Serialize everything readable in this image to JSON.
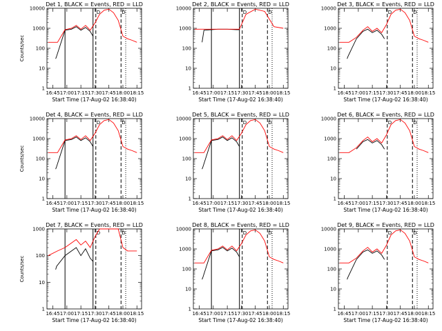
{
  "chart_data": [
    {
      "type": "line",
      "title": "Det 1, BLACK = Events, RED = LLD",
      "xlabel": "Start Time (17-Aug-02 16:38:40)",
      "ylabel": "Counts/sec",
      "yscale": "log",
      "ylim": [
        1,
        10000
      ],
      "xlim": [
        "16:38:40",
        "18:20:00"
      ],
      "x_ticks": [
        "16:45",
        "17:00",
        "17:15",
        "17:30",
        "17:45",
        "18:00",
        "18:15"
      ],
      "y_ticks": [
        "1",
        "10",
        "100",
        "1000",
        "10000"
      ],
      "vertical_lines_solid": [
        "16:58",
        "17:28"
      ],
      "vertical_lines_dashed": [
        "17:31",
        "17:58"
      ],
      "vertical_lines_dotted": [
        "18:03"
      ],
      "markers_text": [
        "D",
        "D"
      ],
      "series": [
        {
          "color": "#000000",
          "x": [
            "16:48",
            "16:49",
            "16:58",
            "17:05",
            "17:10",
            "17:15",
            "17:20",
            "17:25",
            "17:28"
          ],
          "y": [
            30,
            40,
            800,
            900,
            1200,
            800,
            1100,
            700,
            400
          ]
        },
        {
          "color": "#ff0000",
          "x": [
            "16:40",
            "16:50",
            "16:58",
            "17:05",
            "17:10",
            "17:15",
            "17:20",
            "17:25",
            "17:30",
            "17:35",
            "17:40",
            "17:45",
            "17:50",
            "17:55",
            "18:00",
            "18:05",
            "18:10",
            "18:15"
          ],
          "y": [
            200,
            200,
            850,
            1000,
            1400,
            900,
            1400,
            800,
            1800,
            5000,
            8000,
            9000,
            6000,
            2500,
            400,
            300,
            250,
            200
          ]
        }
      ]
    },
    {
      "type": "line",
      "title": "Det 2, BLACK = Events, RED = LLD",
      "xlabel": "Start Time (17-Aug-02 16:38:40)",
      "ylabel": "",
      "yscale": "log",
      "ylim": [
        1,
        10000
      ],
      "x_ticks": [
        "16:45",
        "17:00",
        "17:15",
        "17:30",
        "17:45",
        "18:00",
        "18:15"
      ],
      "y_ticks": [
        "1",
        "10",
        "100",
        "1000",
        "10000"
      ],
      "vertical_lines_solid": [
        "16:58",
        "17:28"
      ],
      "vertical_lines_dashed": [
        "17:31",
        "17:58"
      ],
      "vertical_lines_dotted": [
        "18:03"
      ],
      "markers_text": [
        "D",
        "D"
      ],
      "series": [
        {
          "color": "#000000",
          "x": [
            "16:48",
            "16:50",
            "16:58",
            "17:05",
            "17:15",
            "17:25",
            "17:28"
          ],
          "y": [
            200,
            800,
            850,
            900,
            900,
            850,
            850
          ]
        },
        {
          "color": "#ff0000",
          "x": [
            "16:40",
            "16:50",
            "17:00",
            "17:15",
            "17:28",
            "17:35",
            "17:45",
            "17:55",
            "18:05",
            "18:15"
          ],
          "y": [
            900,
            900,
            900,
            900,
            900,
            5000,
            9000,
            7000,
            1200,
            1000
          ]
        }
      ]
    },
    {
      "type": "line",
      "title": "Det 3, BLACK = Events, RED = LLD",
      "xlabel": "Start Time (17-Aug-02 16:38:40)",
      "ylabel": "",
      "yscale": "log",
      "ylim": [
        1,
        10000
      ],
      "x_ticks": [
        "16:45",
        "17:00",
        "17:15",
        "17:30",
        "17:45",
        "18:00",
        "18:15"
      ],
      "y_ticks": [
        "1",
        "10",
        "100",
        "1000",
        "10000"
      ],
      "vertical_lines_dashed": [
        "17:31",
        "17:58"
      ],
      "vertical_lines_dotted": [
        "18:03"
      ],
      "markers_text": [
        "D",
        "D"
      ],
      "series": [
        {
          "color": "#000000",
          "x": [
            "16:48",
            "16:49",
            "16:58",
            "17:05",
            "17:10",
            "17:15",
            "17:20",
            "17:25",
            "17:28"
          ],
          "y": [
            30,
            40,
            300,
            700,
            900,
            600,
            800,
            500,
            300
          ]
        },
        {
          "color": "#ff0000",
          "x": [
            "16:40",
            "16:50",
            "16:58",
            "17:05",
            "17:10",
            "17:15",
            "17:20",
            "17:25",
            "17:30",
            "17:35",
            "17:40",
            "17:45",
            "17:50",
            "17:55",
            "18:00",
            "18:05",
            "18:10",
            "18:15"
          ],
          "y": [
            200,
            200,
            350,
            800,
            1200,
            700,
            1000,
            600,
            1500,
            5000,
            8000,
            9000,
            6000,
            2500,
            400,
            300,
            250,
            200
          ]
        }
      ]
    },
    {
      "type": "line",
      "title": "Det 4, BLACK = Events, RED = LLD",
      "xlabel": "Start Time (17-Aug-02 16:38:40)",
      "ylabel": "Counts/sec",
      "yscale": "log",
      "ylim": [
        1,
        10000
      ],
      "x_ticks": [
        "16:45",
        "17:00",
        "17:15",
        "17:30",
        "17:45",
        "18:00",
        "18:15"
      ],
      "y_ticks": [
        "1",
        "10",
        "100",
        "1000",
        "10000"
      ],
      "vertical_lines_solid": [
        "16:58",
        "17:28"
      ],
      "vertical_lines_dashed": [
        "17:31",
        "17:58"
      ],
      "vertical_lines_dotted": [
        "18:03"
      ],
      "markers_text": [
        "D",
        "D"
      ],
      "series": [
        {
          "color": "#000000",
          "x": [
            "16:48",
            "16:49",
            "16:58",
            "17:05",
            "17:10",
            "17:15",
            "17:20",
            "17:25",
            "17:28"
          ],
          "y": [
            30,
            40,
            800,
            900,
            1200,
            800,
            1100,
            700,
            400
          ]
        },
        {
          "color": "#ff0000",
          "x": [
            "16:40",
            "16:50",
            "16:58",
            "17:05",
            "17:10",
            "17:15",
            "17:20",
            "17:25",
            "17:30",
            "17:35",
            "17:40",
            "17:45",
            "17:50",
            "17:55",
            "18:00",
            "18:05",
            "18:10",
            "18:15"
          ],
          "y": [
            200,
            200,
            850,
            1000,
            1400,
            900,
            1400,
            800,
            1800,
            5000,
            8000,
            9000,
            6000,
            2500,
            400,
            300,
            250,
            200
          ]
        }
      ]
    },
    {
      "type": "line",
      "title": "Det 5, BLACK = Events, RED = LLD",
      "xlabel": "Start Time (17-Aug-02 16:38:40)",
      "ylabel": "",
      "yscale": "log",
      "ylim": [
        1,
        10000
      ],
      "x_ticks": [
        "16:45",
        "17:00",
        "17:15",
        "17:30",
        "17:45",
        "18:00",
        "18:15"
      ],
      "y_ticks": [
        "1",
        "10",
        "100",
        "1000",
        "10000"
      ],
      "vertical_lines_solid": [
        "16:58",
        "17:28"
      ],
      "vertical_lines_dashed": [
        "17:31",
        "17:58"
      ],
      "vertical_lines_dotted": [
        "18:03"
      ],
      "markers_text": [
        "D",
        "D"
      ],
      "series": [
        {
          "color": "#000000",
          "x": [
            "16:48",
            "16:49",
            "16:58",
            "17:05",
            "17:10",
            "17:15",
            "17:20",
            "17:25",
            "17:28"
          ],
          "y": [
            30,
            40,
            800,
            900,
            1200,
            800,
            1100,
            700,
            400
          ]
        },
        {
          "color": "#ff0000",
          "x": [
            "16:40",
            "16:50",
            "16:58",
            "17:05",
            "17:10",
            "17:15",
            "17:20",
            "17:25",
            "17:30",
            "17:35",
            "17:40",
            "17:45",
            "17:50",
            "17:55",
            "18:00",
            "18:05",
            "18:10",
            "18:15"
          ],
          "y": [
            200,
            200,
            850,
            1000,
            1400,
            900,
            1400,
            800,
            1800,
            5000,
            8000,
            9000,
            6000,
            2500,
            400,
            300,
            250,
            200
          ]
        }
      ]
    },
    {
      "type": "line",
      "title": "Det 6, BLACK = Events, RED = LLD",
      "xlabel": "Start Time (17-Aug-02 16:38:40)",
      "ylabel": "",
      "yscale": "log",
      "ylim": [
        1,
        10000
      ],
      "x_ticks": [
        "16:45",
        "17:00",
        "17:15",
        "17:30",
        "17:45",
        "18:00",
        "18:15"
      ],
      "y_ticks": [
        "1",
        "10",
        "100",
        "1000",
        "10000"
      ],
      "vertical_lines_dashed": [
        "17:31",
        "17:58"
      ],
      "vertical_lines_dotted": [
        "18:03"
      ],
      "markers_text": [
        "D",
        "D"
      ],
      "series": [
        {
          "color": "#000000",
          "x": [
            "16:58",
            "17:05",
            "17:10",
            "17:15",
            "17:20",
            "17:25",
            "17:28"
          ],
          "y": [
            300,
            700,
            900,
            600,
            800,
            500,
            300
          ]
        },
        {
          "color": "#ff0000",
          "x": [
            "16:40",
            "16:50",
            "16:58",
            "17:05",
            "17:10",
            "17:15",
            "17:20",
            "17:25",
            "17:30",
            "17:35",
            "17:40",
            "17:45",
            "17:50",
            "17:55",
            "18:00",
            "18:05",
            "18:10",
            "18:15"
          ],
          "y": [
            200,
            200,
            350,
            800,
            1200,
            700,
            1000,
            600,
            1500,
            5000,
            8000,
            9000,
            6000,
            2500,
            400,
            300,
            250,
            200
          ]
        }
      ]
    },
    {
      "type": "line",
      "title": "Det 7, BLACK = Events, RED = LLD",
      "xlabel": "Start Time (17-Aug-02 16:38:40)",
      "ylabel": "Counts/sec",
      "yscale": "log",
      "ylim": [
        1,
        1000
      ],
      "x_ticks": [
        "16:45",
        "17:00",
        "17:15",
        "17:30",
        "17:45",
        "18:00",
        "18:15"
      ],
      "y_ticks": [
        "1",
        "10",
        "100",
        "1000"
      ],
      "vertical_lines_solid": [
        "16:58",
        "17:28"
      ],
      "vertical_lines_dashed": [
        "17:31",
        "17:58"
      ],
      "vertical_lines_dotted": [
        "18:03"
      ],
      "markers_text": [
        "D",
        "D"
      ],
      "series": [
        {
          "color": "#000000",
          "x": [
            "16:48",
            "16:49",
            "16:58",
            "17:05",
            "17:10",
            "17:15",
            "17:20",
            "17:25",
            "17:28"
          ],
          "y": [
            30,
            40,
            100,
            150,
            200,
            100,
            180,
            80,
            60
          ]
        },
        {
          "color": "#ff0000",
          "x": [
            "16:40",
            "16:50",
            "16:58",
            "17:05",
            "17:10",
            "17:15",
            "17:20",
            "17:25",
            "17:30",
            "17:35",
            "17:45",
            "17:55",
            "18:00",
            "18:05",
            "18:15"
          ],
          "y": [
            100,
            150,
            200,
            300,
            400,
            250,
            350,
            200,
            500,
            1000,
            1000,
            1000,
            200,
            150,
            150
          ]
        }
      ]
    },
    {
      "type": "line",
      "title": "Det 8, BLACK = Events, RED = LLD",
      "xlabel": "Start Time (17-Aug-02 16:38:40)",
      "ylabel": "",
      "yscale": "log",
      "ylim": [
        1,
        10000
      ],
      "x_ticks": [
        "16:45",
        "17:00",
        "17:15",
        "17:30",
        "17:45",
        "18:00",
        "18:15"
      ],
      "y_ticks": [
        "1",
        "10",
        "100",
        "1000",
        "10000"
      ],
      "vertical_lines_solid": [
        "16:58",
        "17:28"
      ],
      "vertical_lines_dashed": [
        "17:31",
        "17:58"
      ],
      "vertical_lines_dotted": [
        "18:03"
      ],
      "markers_text": [
        "D",
        "D"
      ],
      "series": [
        {
          "color": "#000000",
          "x": [
            "16:48",
            "16:49",
            "16:58",
            "17:05",
            "17:10",
            "17:15",
            "17:20",
            "17:25",
            "17:28"
          ],
          "y": [
            30,
            40,
            800,
            900,
            1200,
            800,
            1100,
            700,
            400
          ]
        },
        {
          "color": "#ff0000",
          "x": [
            "16:40",
            "16:50",
            "16:58",
            "17:05",
            "17:10",
            "17:15",
            "17:20",
            "17:25",
            "17:30",
            "17:35",
            "17:40",
            "17:45",
            "17:50",
            "17:55",
            "18:00",
            "18:05",
            "18:10",
            "18:15"
          ],
          "y": [
            200,
            200,
            850,
            1000,
            1400,
            900,
            1400,
            800,
            1800,
            5000,
            8000,
            9000,
            6000,
            2500,
            400,
            300,
            250,
            200
          ]
        }
      ]
    },
    {
      "type": "line",
      "title": "Det 9, BLACK = Events, RED = LLD",
      "xlabel": "Start Time (17-Aug-02 16:38:40)",
      "ylabel": "",
      "yscale": "log",
      "ylim": [
        1,
        10000
      ],
      "x_ticks": [
        "16:45",
        "17:00",
        "17:15",
        "17:30",
        "17:45",
        "18:00",
        "18:15"
      ],
      "y_ticks": [
        "1",
        "10",
        "100",
        "1000",
        "10000"
      ],
      "vertical_lines_dashed": [
        "17:31",
        "17:58"
      ],
      "vertical_lines_dotted": [
        "18:03"
      ],
      "markers_text": [
        "D",
        "D"
      ],
      "series": [
        {
          "color": "#000000",
          "x": [
            "16:48",
            "16:49",
            "16:58",
            "17:05",
            "17:10",
            "17:15",
            "17:20",
            "17:25",
            "17:28"
          ],
          "y": [
            30,
            40,
            300,
            700,
            900,
            600,
            800,
            500,
            300
          ]
        },
        {
          "color": "#ff0000",
          "x": [
            "16:40",
            "16:50",
            "16:58",
            "17:05",
            "17:10",
            "17:15",
            "17:20",
            "17:25",
            "17:30",
            "17:35",
            "17:40",
            "17:45",
            "17:50",
            "17:55",
            "18:00",
            "18:05",
            "18:10",
            "18:15"
          ],
          "y": [
            200,
            200,
            350,
            800,
            1200,
            700,
            1000,
            600,
            1500,
            5000,
            8000,
            9000,
            6000,
            2500,
            400,
            300,
            250,
            200
          ]
        }
      ]
    }
  ]
}
